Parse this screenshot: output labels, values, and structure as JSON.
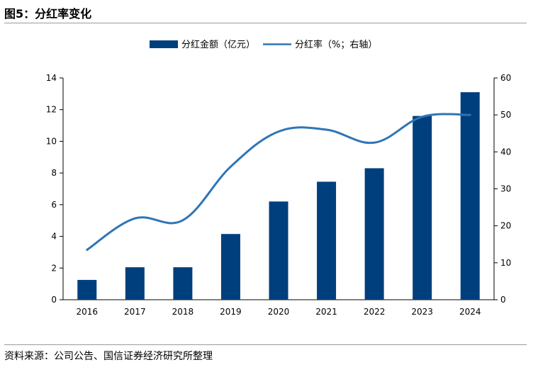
{
  "figure": {
    "title": "图5：分红率变化",
    "source": "资料来源：公司公告、国信证券经济研究所整理"
  },
  "colors": {
    "bar": "#003f7d",
    "line": "#2e75b6",
    "axis": "#000000",
    "rule": "#9a9a9a"
  },
  "chart_data": {
    "type": "bar",
    "categories": [
      "2016",
      "2017",
      "2018",
      "2019",
      "2020",
      "2021",
      "2022",
      "2023",
      "2024"
    ],
    "series": [
      {
        "name": "分红金额（亿元）",
        "type": "bar",
        "axis": "left",
        "values": [
          1.25,
          2.05,
          2.05,
          4.15,
          6.2,
          7.45,
          8.3,
          11.6,
          13.1
        ]
      },
      {
        "name": "分红率（%；右轴）",
        "type": "line",
        "axis": "right",
        "values": [
          13.5,
          22.0,
          21.5,
          36.0,
          45.5,
          46.0,
          42.5,
          49.5,
          50.0
        ]
      }
    ],
    "y_left": {
      "lim": [
        0,
        14
      ],
      "ticks": [
        "0",
        "2",
        "4",
        "6",
        "8",
        "10",
        "12",
        "14"
      ]
    },
    "y_right": {
      "lim": [
        0,
        60
      ],
      "ticks": [
        "0",
        "10",
        "20",
        "30",
        "40",
        "50",
        "60"
      ]
    },
    "grid": false,
    "legend": "top-center"
  }
}
